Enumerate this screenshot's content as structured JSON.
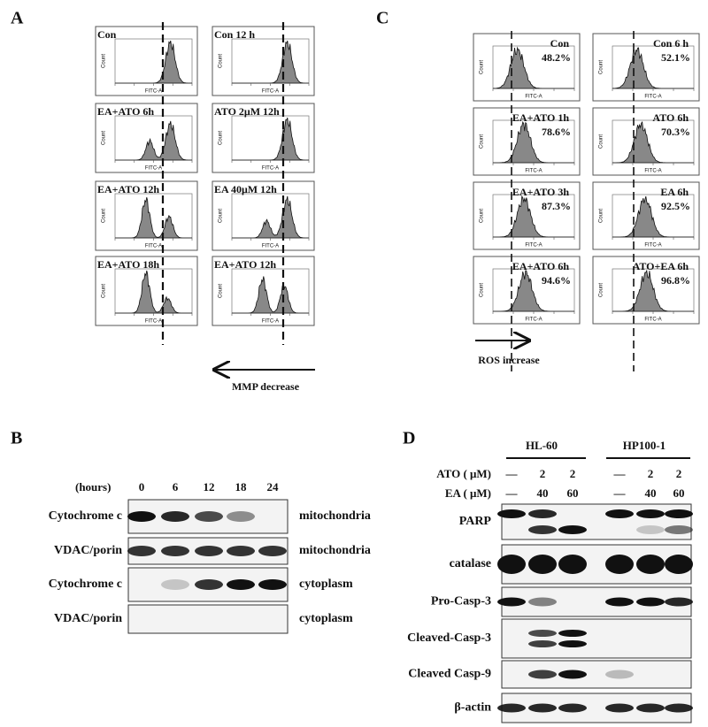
{
  "panel_a": {
    "label": "A",
    "y_axis_label": "Count",
    "x_axis_label": "FITC-A",
    "arrow_label": "MMP decrease",
    "histograms": [
      {
        "title": "Con"
      },
      {
        "title": "Con 12 h"
      },
      {
        "title": "EA+ATO 6h"
      },
      {
        "title": "ATO 2μM 12h"
      },
      {
        "title": "EA+ATO 12h"
      },
      {
        "title": "EA 40μM 12h"
      },
      {
        "title": "EA+ATO 18h"
      },
      {
        "title": "EA+ATO 12h"
      }
    ]
  },
  "panel_c": {
    "label": "C",
    "y_axis_label": "Count",
    "x_axis_label": "FITC-A",
    "arrow_label": "ROS increase",
    "histograms": [
      {
        "title": "Con",
        "percent": "48.2%"
      },
      {
        "title": "Con 6 h",
        "percent": "52.1%"
      },
      {
        "title": "EA+ATO 1h",
        "percent": "78.6%"
      },
      {
        "title": "ATO 6h",
        "percent": "70.3%"
      },
      {
        "title": "EA+ATO 3h",
        "percent": "87.3%"
      },
      {
        "title": "EA 6h",
        "percent": "92.5%"
      },
      {
        "title": "EA+ATO 6h",
        "percent": "94.6%"
      },
      {
        "title": "ATO+EA 6h",
        "percent": "96.8%"
      }
    ]
  },
  "panel_b": {
    "label": "B",
    "time_label": "(hours)",
    "time_points": [
      "0",
      "6",
      "12",
      "18",
      "24"
    ],
    "rows": [
      {
        "protein": "Cytochrome c",
        "fraction": "mitochondria"
      },
      {
        "protein": "VDAC/porin",
        "fraction": "mitochondria"
      },
      {
        "protein": "Cytochrome c",
        "fraction": "cytoplasm"
      },
      {
        "protein": "VDAC/porin",
        "fraction": "cytoplasm"
      }
    ]
  },
  "panel_d": {
    "label": "D",
    "cell_lines": [
      "HL-60",
      "HP100-1"
    ],
    "treatments": [
      {
        "name": "ATO ( μM)",
        "doses": [
          "—",
          "2",
          "2",
          "—",
          "2",
          "2"
        ]
      },
      {
        "name": "EA ( μM)",
        "doses": [
          "—",
          "40",
          "60",
          "—",
          "40",
          "60"
        ]
      }
    ],
    "rows": [
      "PARP",
      "catalase",
      "Pro-Casp-3",
      "Cleaved-Casp-3",
      "Cleaved Casp-9",
      "β-actin"
    ]
  }
}
